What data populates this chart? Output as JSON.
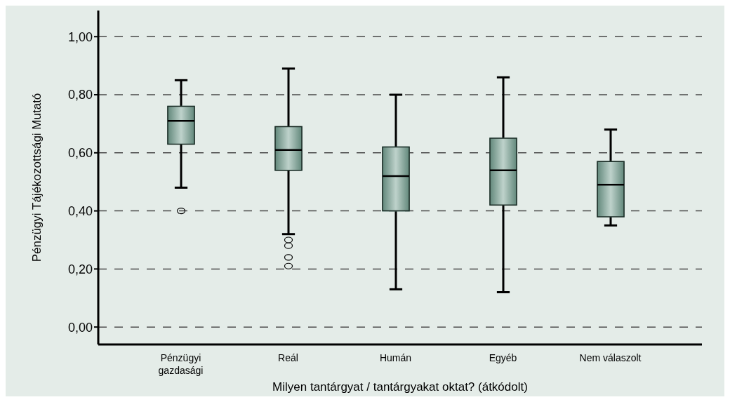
{
  "chart_data": {
    "type": "box",
    "xlabel": "Milyen tantárgyat / tantárgyakat oktat? (átkódolt)",
    "ylabel": "Pénzügyi Tájékozottsági Mutató",
    "categories": [
      "Pénzügyi gazdasági",
      "Reál",
      "Humán",
      "Egyéb",
      "Nem válaszolt"
    ],
    "color": "#6f9a8c",
    "boxes": [
      {
        "low": 0.48,
        "q1": 0.63,
        "median": 0.71,
        "q3": 0.76,
        "high": 0.85,
        "outliers": [
          0.4
        ]
      },
      {
        "low": 0.32,
        "q1": 0.54,
        "median": 0.61,
        "q3": 0.69,
        "high": 0.89,
        "outliers": [
          0.3,
          0.28,
          0.24,
          0.21
        ]
      },
      {
        "low": 0.13,
        "q1": 0.4,
        "median": 0.52,
        "q3": 0.62,
        "high": 0.8
      },
      {
        "low": 0.12,
        "q1": 0.42,
        "median": 0.54,
        "q3": 0.65,
        "high": 0.86
      },
      {
        "low": 0.35,
        "q1": 0.38,
        "median": 0.49,
        "q3": 0.57,
        "high": 0.68
      }
    ],
    "ylim": [
      -0.06,
      1.09
    ],
    "yticks": [
      {
        "value": 0,
        "label": "0,00"
      },
      {
        "value": 0.2,
        "label": "0,20"
      },
      {
        "value": 0.4,
        "label": "0,40"
      },
      {
        "value": 0.6,
        "label": "0,60"
      },
      {
        "value": 0.8,
        "label": "0,80"
      },
      {
        "value": 1,
        "label": "1,00"
      }
    ],
    "grid": "y"
  }
}
